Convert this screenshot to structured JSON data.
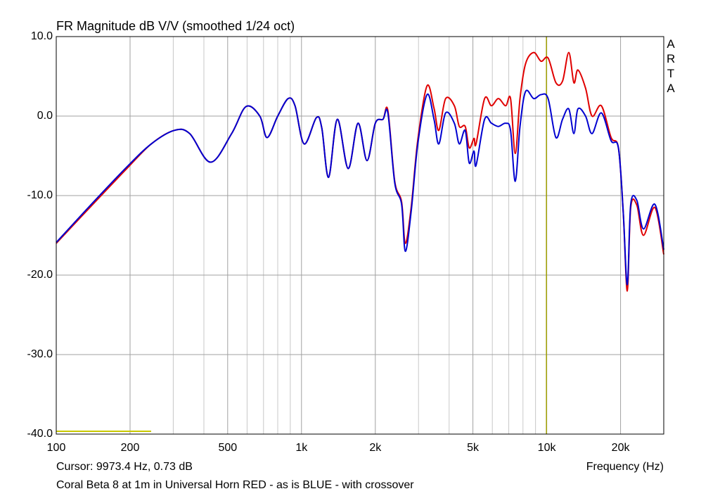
{
  "chart_data": {
    "type": "line",
    "title": "FR Magnitude dB V/V (smoothed 1/24 oct)",
    "x_label": "Frequency (Hz)",
    "footer": "Coral Beta 8 at 1m in Universal Horn RED - as is  BLUE - with crossover",
    "watermark": "ARTA",
    "cursor": {
      "x": 9973.4,
      "label": "Cursor: 9973.4 Hz, 0.73 dB"
    },
    "log_x": true,
    "grid": true,
    "xlim": [
      100,
      30000
    ],
    "ylim": [
      -40,
      10
    ],
    "xticks": [
      100,
      200,
      500,
      {
        "value": 1000,
        "label": "1k"
      },
      {
        "value": 2000,
        "label": "2k"
      },
      {
        "value": 5000,
        "label": "5k"
      },
      {
        "value": 10000,
        "label": "10k"
      },
      {
        "value": 20000,
        "label": "20k"
      }
    ],
    "x_minor_grid": [
      300,
      400,
      600,
      700,
      800,
      900,
      3000,
      4000,
      6000,
      7000,
      8000,
      9000,
      30000
    ],
    "yticks": [
      {
        "value": 10,
        "label": "10.0"
      },
      {
        "value": 0,
        "label": "0.0"
      },
      {
        "value": -10,
        "label": "-10.0"
      },
      {
        "value": -20,
        "label": "-20.0"
      },
      {
        "value": -30,
        "label": "-30.0"
      },
      {
        "value": -40,
        "label": "-40.0"
      }
    ],
    "x": [
      100,
      139,
      194,
      244,
      303,
      350,
      426,
      519,
      594,
      676,
      724,
      800,
      882,
      941,
      1025,
      1150,
      1210,
      1290,
      1400,
      1550,
      1700,
      1850,
      2000,
      2150,
      2250,
      2400,
      2560,
      2650,
      2800,
      2980,
      3250,
      3470,
      3630,
      3870,
      4200,
      4400,
      4650,
      4830,
      5050,
      5150,
      5580,
      5950,
      6350,
      6800,
      7120,
      7440,
      7780,
      8200,
      8850,
      9480,
      10130,
      10900,
      11600,
      12300,
      12900,
      13400,
      14400,
      15300,
      16700,
      18300,
      19600,
      20500,
      21300,
      22000,
      23300,
      24800,
      27600,
      30000
    ],
    "series": [
      {
        "color": "#e00000",
        "values": [
          -16.0,
          -11.3,
          -6.6,
          -3.5,
          -1.8,
          -2.2,
          -5.8,
          -2.2,
          1.2,
          0.0,
          -2.7,
          0.0,
          2.2,
          1.3,
          -3.5,
          -0.2,
          -1.5,
          -7.7,
          -0.4,
          -6.6,
          -0.9,
          -5.6,
          -0.9,
          -0.4,
          0.7,
          -8.2,
          -10.8,
          -16.0,
          -11.5,
          -3.0,
          3.8,
          1.0,
          -1.8,
          2.2,
          1.3,
          -1.3,
          -1.3,
          -4.0,
          -2.8,
          -3.5,
          2.2,
          1.3,
          2.2,
          1.3,
          2.2,
          -4.7,
          2.2,
          6.6,
          8.0,
          6.9,
          7.3,
          4.2,
          4.4,
          8.0,
          4.2,
          5.8,
          3.5,
          0.0,
          1.3,
          -2.7,
          -4.0,
          -12.0,
          -22.0,
          -11.5,
          -11.2,
          -15.0,
          -11.5,
          -17.4
        ]
      },
      {
        "color": "#0000d0",
        "values": [
          -15.9,
          -11.1,
          -6.4,
          -3.5,
          -1.8,
          -2.2,
          -5.8,
          -2.2,
          1.2,
          0.0,
          -2.7,
          0.0,
          2.2,
          1.3,
          -3.5,
          -0.2,
          -1.5,
          -7.7,
          -0.4,
          -6.6,
          -0.9,
          -5.6,
          -0.9,
          -0.4,
          0.4,
          -8.4,
          -11.1,
          -17.0,
          -12.0,
          -3.5,
          2.7,
          -0.4,
          -3.5,
          0.4,
          -0.9,
          -3.5,
          -1.8,
          -5.9,
          -4.4,
          -6.2,
          -0.4,
          -0.9,
          -1.3,
          -0.9,
          -1.8,
          -8.2,
          -1.3,
          3.1,
          2.2,
          2.7,
          2.2,
          -2.7,
          -0.4,
          0.9,
          -2.2,
          0.9,
          0.0,
          -2.2,
          0.4,
          -3.1,
          -4.0,
          -12.0,
          -21.2,
          -11.1,
          -10.6,
          -14.2,
          -11.1,
          -16.8
        ]
      }
    ]
  }
}
